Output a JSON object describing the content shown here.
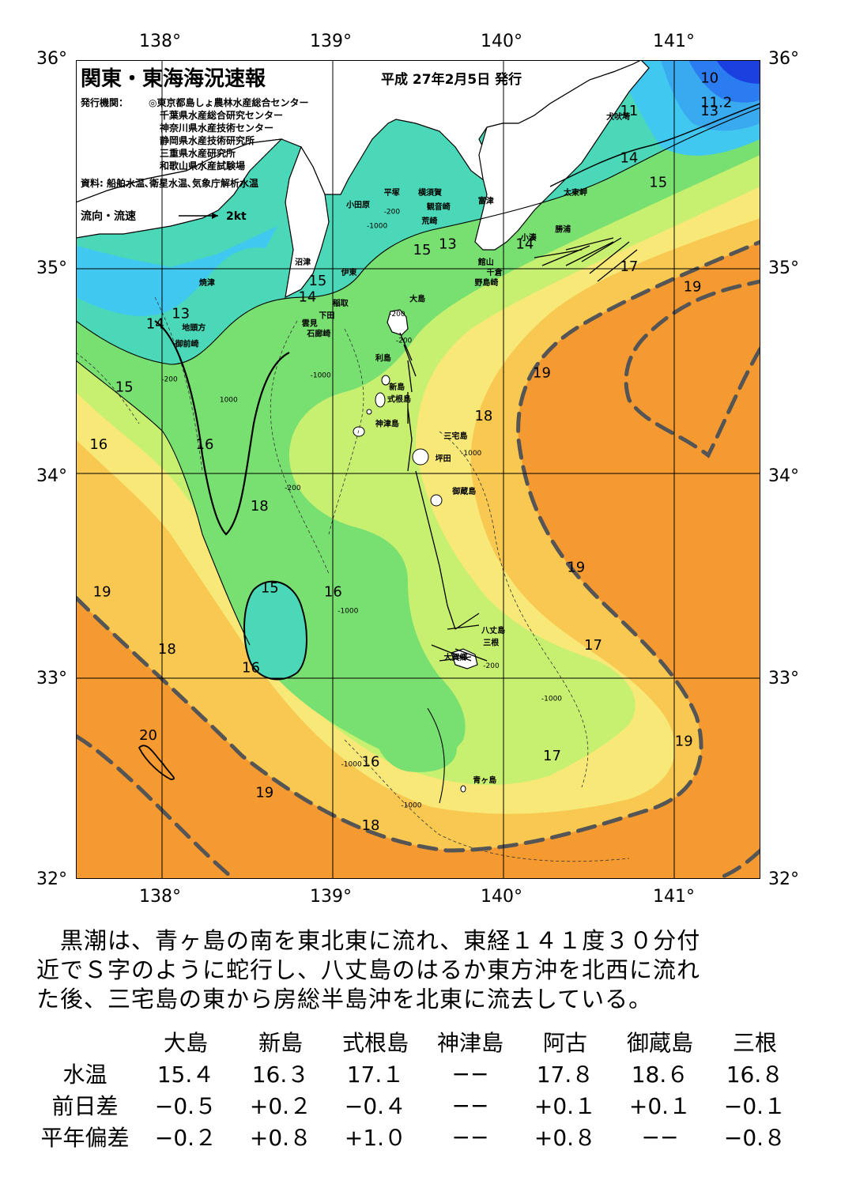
{
  "header": {
    "title": "関東・東海海況速報",
    "date": "平成 27年2月5日 発行",
    "issuer_label": "発行機関：",
    "issuers": [
      "◎東京都島しょ農林水産総合センター",
      "千葉県水産総合研究センター",
      "神奈川県水産技術センター",
      "静岡県水産技術研究所",
      "三重県水産研究所",
      "和歌山県水産試験場"
    ],
    "source": "資料: 船舶水温､衛星水温､気象庁解析水温",
    "flow_legend": "流向・流速",
    "flow_scale": "2kt"
  },
  "axes": {
    "lon_labels": [
      "138°",
      "139°",
      "140°",
      "141°"
    ],
    "lat_labels": [
      "36°",
      "35°",
      "34°",
      "33°",
      "32°"
    ]
  },
  "map": {
    "lon_range": [
      137.5,
      141.5
    ],
    "lat_range": [
      32,
      36
    ],
    "place_names": [
      {
        "name": "犬吠埼",
        "lon": 140.6,
        "lat": 35.71
      },
      {
        "name": "太東岬",
        "lon": 140.35,
        "lat": 35.34
      },
      {
        "name": "勝浦",
        "lon": 140.3,
        "lat": 35.16
      },
      {
        "name": "小湊",
        "lon": 140.1,
        "lat": 35.12
      },
      {
        "name": "富津",
        "lon": 139.85,
        "lat": 35.3
      },
      {
        "name": "館山",
        "lon": 139.85,
        "lat": 35.0
      },
      {
        "name": "千倉",
        "lon": 139.9,
        "lat": 34.95
      },
      {
        "name": "野島崎",
        "lon": 139.83,
        "lat": 34.9
      },
      {
        "name": "横須賀",
        "lon": 139.5,
        "lat": 35.34
      },
      {
        "name": "観音崎",
        "lon": 139.55,
        "lat": 35.27
      },
      {
        "name": "平塚",
        "lon": 139.3,
        "lat": 35.34
      },
      {
        "name": "荒崎",
        "lon": 139.52,
        "lat": 35.2
      },
      {
        "name": "小田原",
        "lon": 139.08,
        "lat": 35.28
      },
      {
        "name": "沼津",
        "lon": 138.78,
        "lat": 35.0
      },
      {
        "name": "伊東",
        "lon": 139.05,
        "lat": 34.95
      },
      {
        "name": "焼津",
        "lon": 138.22,
        "lat": 34.9
      },
      {
        "name": "稲取",
        "lon": 139.0,
        "lat": 34.8
      },
      {
        "name": "下田",
        "lon": 138.92,
        "lat": 34.74
      },
      {
        "name": "雲見",
        "lon": 138.82,
        "lat": 34.7
      },
      {
        "name": "石廊崎",
        "lon": 138.85,
        "lat": 34.65
      },
      {
        "name": "地頭方",
        "lon": 138.12,
        "lat": 34.68
      },
      {
        "name": "御前崎",
        "lon": 138.08,
        "lat": 34.6
      },
      {
        "name": "大島",
        "lon": 139.45,
        "lat": 34.82
      },
      {
        "name": "利島",
        "lon": 139.25,
        "lat": 34.53
      },
      {
        "name": "新島",
        "lon": 139.33,
        "lat": 34.39
      },
      {
        "name": "式根島",
        "lon": 139.32,
        "lat": 34.33
      },
      {
        "name": "神津島",
        "lon": 139.25,
        "lat": 34.21
      },
      {
        "name": "三宅島",
        "lon": 139.65,
        "lat": 34.15
      },
      {
        "name": "坪田",
        "lon": 139.6,
        "lat": 34.04
      },
      {
        "name": "御蔵島",
        "lon": 139.7,
        "lat": 33.88
      },
      {
        "name": "八丈島",
        "lon": 139.87,
        "lat": 33.2
      },
      {
        "name": "三根",
        "lon": 139.88,
        "lat": 33.14
      },
      {
        "name": "大賀郷",
        "lon": 139.65,
        "lat": 33.07
      },
      {
        "name": "青ヶ島",
        "lon": 139.82,
        "lat": 32.47
      }
    ],
    "temperature_labels": [
      {
        "t": "10",
        "lon": 141.15,
        "lat": 35.89
      },
      {
        "t": "11.2",
        "lon": 141.15,
        "lat": 35.77
      },
      {
        "t": "13",
        "lon": 141.15,
        "lat": 35.73
      },
      {
        "t": "11",
        "lon": 140.68,
        "lat": 35.73
      },
      {
        "t": "14",
        "lon": 140.68,
        "lat": 35.5
      },
      {
        "t": "15",
        "lon": 140.85,
        "lat": 35.38
      },
      {
        "t": "17",
        "lon": 140.68,
        "lat": 34.97
      },
      {
        "t": "19",
        "lon": 141.05,
        "lat": 34.87
      },
      {
        "t": "14",
        "lon": 140.07,
        "lat": 35.08
      },
      {
        "t": "15",
        "lon": 139.47,
        "lat": 35.05
      },
      {
        "t": "13",
        "lon": 139.62,
        "lat": 35.08
      },
      {
        "t": "15",
        "lon": 138.86,
        "lat": 34.9
      },
      {
        "t": "14",
        "lon": 138.8,
        "lat": 34.82
      },
      {
        "t": "13",
        "lon": 138.06,
        "lat": 34.74
      },
      {
        "t": "14",
        "lon": 137.91,
        "lat": 34.69
      },
      {
        "t": "15",
        "lon": 137.73,
        "lat": 34.38
      },
      {
        "t": "16",
        "lon": 137.58,
        "lat": 34.1
      },
      {
        "t": "16",
        "lon": 138.2,
        "lat": 34.1
      },
      {
        "t": "18",
        "lon": 139.83,
        "lat": 34.24
      },
      {
        "t": "19",
        "lon": 140.17,
        "lat": 34.45
      },
      {
        "t": "18",
        "lon": 138.52,
        "lat": 33.8
      },
      {
        "t": "19",
        "lon": 140.37,
        "lat": 33.5
      },
      {
        "t": "19",
        "lon": 137.6,
        "lat": 33.38
      },
      {
        "t": "15",
        "lon": 138.58,
        "lat": 33.4
      },
      {
        "t": "16",
        "lon": 138.95,
        "lat": 33.38
      },
      {
        "t": "18",
        "lon": 137.98,
        "lat": 33.1
      },
      {
        "t": "16",
        "lon": 138.47,
        "lat": 33.01
      },
      {
        "t": "17",
        "lon": 140.47,
        "lat": 33.12
      },
      {
        "t": "19",
        "lon": 141.0,
        "lat": 32.65
      },
      {
        "t": "17",
        "lon": 140.23,
        "lat": 32.58
      },
      {
        "t": "20",
        "lon": 137.87,
        "lat": 32.68
      },
      {
        "t": "16",
        "lon": 139.17,
        "lat": 32.55
      },
      {
        "t": "19",
        "lon": 138.55,
        "lat": 32.4
      },
      {
        "t": "18",
        "lon": 139.17,
        "lat": 32.24
      }
    ],
    "depth_labels": [
      {
        "t": "-200",
        "lon": 139.3,
        "lat": 35.25
      },
      {
        "t": "-1000",
        "lon": 139.2,
        "lat": 35.18
      },
      {
        "t": "-200",
        "lon": 139.33,
        "lat": 34.75
      },
      {
        "t": "-200",
        "lon": 139.37,
        "lat": 34.62
      },
      {
        "t": "-1000",
        "lon": 138.87,
        "lat": 34.45
      },
      {
        "t": "-200",
        "lon": 138.0,
        "lat": 34.43
      },
      {
        "t": "1000",
        "lon": 138.34,
        "lat": 34.33
      },
      {
        "t": "-1000",
        "lon": 139.75,
        "lat": 34.07
      },
      {
        "t": "-200",
        "lon": 138.72,
        "lat": 33.9
      },
      {
        "t": "-1000",
        "lon": 139.03,
        "lat": 33.3
      },
      {
        "t": "-200",
        "lon": 139.88,
        "lat": 33.03
      },
      {
        "t": "-1000",
        "lon": 140.22,
        "lat": 32.87
      },
      {
        "t": "-1000",
        "lon": 139.05,
        "lat": 32.55
      },
      {
        "t": "-1000",
        "lon": 139.4,
        "lat": 32.35
      }
    ],
    "colors": {
      "land": "#ffffff",
      "t10": "#1a40e0",
      "t11": "#2a7cf0",
      "t13": "#3aaaf0",
      "t14": "#40c8f0",
      "t15": "#4ad8b8",
      "t16": "#78e070",
      "t17": "#c8f070",
      "t18": "#f8e878",
      "t19": "#f8c850",
      "t20": "#f49a30",
      "kuroshio": "#555555"
    }
  },
  "summary_lines": [
    "　黒潮は、青ヶ島の南を東北東に流れ、東経１４１度３０分付",
    "近でＳ字のように蛇行し、八丈島のはるか東方沖を北西に流れ",
    "た後、三宅島の東から房総半島沖を北東に流去している。"
  ],
  "stats": {
    "columns": [
      "大島",
      "新島",
      "式根島",
      "神津島",
      "阿古",
      "御蔵島",
      "三根"
    ],
    "rows": [
      {
        "label": "水温",
        "values": [
          "15.４",
          "16.３",
          "17.１",
          "−−",
          "17.８",
          "18.６",
          "16.８"
        ]
      },
      {
        "label": "前日差",
        "values": [
          "−0.５",
          "+0.２",
          "−0.４",
          "−−",
          "+0.１",
          "+0.１",
          "−0.１"
        ]
      },
      {
        "label": "平年偏差",
        "values": [
          "−0.２",
          "+0.８",
          "+1.０",
          "−−",
          "+0.８",
          "−−",
          "−0.８"
        ]
      }
    ]
  }
}
